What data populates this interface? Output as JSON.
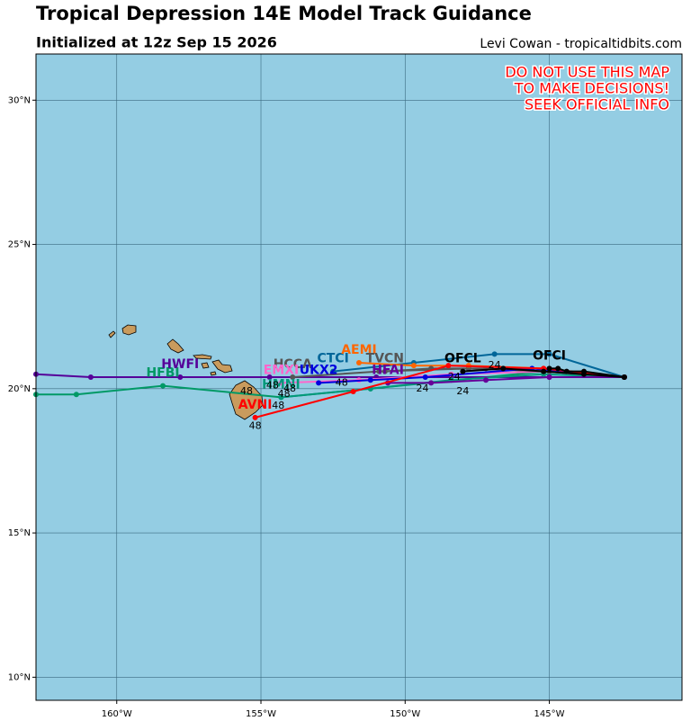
{
  "chart_data": {
    "type": "map",
    "title": "Tropical Depression 14E Model Track Guidance",
    "subtitle": "Initialized at 12z Sep 15 2026",
    "credit": "Levi Cowan - tropicaltidbits.com",
    "warning": [
      "DO NOT USE THIS MAP",
      "TO MAKE DECISIONS!",
      "SEEK OFFICIAL INFO"
    ],
    "xlim": [
      -162.8,
      -140.4
    ],
    "ylim": [
      9.2,
      31.6
    ],
    "xticks": [
      {
        "value": -160,
        "label": "160°W"
      },
      {
        "value": -155,
        "label": "155°W"
      },
      {
        "value": -150,
        "label": "150°W"
      },
      {
        "value": -145,
        "label": "145°W"
      }
    ],
    "yticks": [
      {
        "value": 10,
        "label": "10°N"
      },
      {
        "value": 15,
        "label": "15°N"
      },
      {
        "value": 20,
        "label": "20°N"
      },
      {
        "value": 25,
        "label": "25°N"
      },
      {
        "value": 30,
        "label": "30°N"
      }
    ],
    "grid": true,
    "series": [
      {
        "name": "HFBI",
        "color": "#009966",
        "lon": [
          -142.4,
          -145.2,
          -151.2,
          -154.3,
          -158.4,
          -161.4,
          -162.8
        ],
        "lat": [
          20.4,
          20.6,
          20.0,
          19.7,
          20.1,
          19.8,
          19.8
        ]
      },
      {
        "name": "HWFI",
        "color": "#550099",
        "lon": [
          -142.4,
          -145.0,
          -151.0,
          -154.7,
          -157.8,
          -160.9,
          -162.8
        ],
        "lat": [
          20.4,
          20.4,
          20.4,
          20.4,
          20.4,
          20.4,
          20.5
        ]
      },
      {
        "name": "HMNI",
        "color": "#00997a",
        "lon": [
          -142.4,
          -145.2,
          -148.4,
          -151.2,
          -154.3
        ],
        "lat": [
          20.4,
          20.5,
          20.3,
          20.0,
          19.7
        ]
      },
      {
        "name": "HCCA",
        "color": "#555555",
        "lon": [
          -142.4,
          -145.0,
          -147.8,
          -150.9,
          -153.9
        ],
        "lat": [
          20.4,
          20.6,
          20.7,
          20.6,
          20.4
        ]
      },
      {
        "name": "EMXI",
        "color": "#ff66cc",
        "lon": [
          -142.4,
          -145.2,
          -148.4,
          -151.6,
          -154.3
        ],
        "lat": [
          20.4,
          20.6,
          20.5,
          20.3,
          20.2
        ]
      },
      {
        "name": "CTCI",
        "color": "#006699",
        "lon": [
          -142.4,
          -145.0,
          -146.9,
          -149.7,
          -152.5
        ],
        "lat": [
          20.4,
          21.2,
          21.2,
          20.9,
          20.6
        ]
      },
      {
        "name": "AEMI",
        "color": "#ff6600",
        "lon": [
          -142.4,
          -145.2,
          -147.8,
          -149.7,
          -151.6
        ],
        "lat": [
          20.4,
          20.7,
          20.8,
          20.8,
          20.9
        ]
      },
      {
        "name": "TVCN",
        "color": "#555555",
        "lon": [
          -142.4,
          -145.2,
          -147.2,
          -149.1,
          -150.7
        ],
        "lat": [
          20.4,
          20.6,
          20.7,
          20.7,
          20.6
        ]
      },
      {
        "name": "UKX2",
        "color": "#0000dd",
        "lon": [
          -142.4,
          -145.6,
          -149.3,
          -151.2,
          -153.0
        ],
        "lat": [
          20.4,
          20.7,
          20.4,
          20.3,
          20.2
        ]
      },
      {
        "name": "HFAI",
        "color": "#660099",
        "lon": [
          -142.4,
          -145.0,
          -147.2,
          -149.1,
          -150.6
        ],
        "lat": [
          20.4,
          20.4,
          20.3,
          20.2,
          20.2
        ]
      },
      {
        "name": "AVNI",
        "color": "#ff0000",
        "lon": [
          -142.4,
          -145.2,
          -148.5,
          -151.8,
          -155.2
        ],
        "lat": [
          20.4,
          20.7,
          20.8,
          19.9,
          19.0
        ]
      },
      {
        "name": "OFCL",
        "color": "#000000",
        "lon": [
          -142.4,
          -143.8,
          -145.2,
          -146.6,
          -148.0
        ],
        "lat": [
          20.4,
          20.5,
          20.6,
          20.7,
          20.6
        ]
      },
      {
        "name": "OFCI",
        "color": "#000000",
        "lon": [
          -142.4,
          -143.8,
          -144.4,
          -144.7,
          -145.0
        ],
        "lat": [
          20.4,
          20.6,
          20.6,
          20.7,
          20.7
        ]
      }
    ],
    "tau_labels": [
      {
        "value": 48,
        "lon": -155.5,
        "lat": 19.9
      },
      {
        "value": 48,
        "lon": -154.6,
        "lat": 20.1
      },
      {
        "value": 48,
        "lon": -154.0,
        "lat": 20.0
      },
      {
        "value": 48,
        "lon": -154.2,
        "lat": 19.8
      },
      {
        "value": 48,
        "lon": -154.4,
        "lat": 19.4
      },
      {
        "value": 48,
        "lon": -155.2,
        "lat": 18.7
      },
      {
        "value": 48,
        "lon": -152.2,
        "lat": 20.2
      },
      {
        "value": 24,
        "lon": -146.9,
        "lat": 20.8
      },
      {
        "value": 24,
        "lon": -149.4,
        "lat": 20.0
      },
      {
        "value": 24,
        "lon": -148.0,
        "lat": 19.9
      },
      {
        "value": 24,
        "lon": -148.3,
        "lat": 20.4
      }
    ]
  }
}
